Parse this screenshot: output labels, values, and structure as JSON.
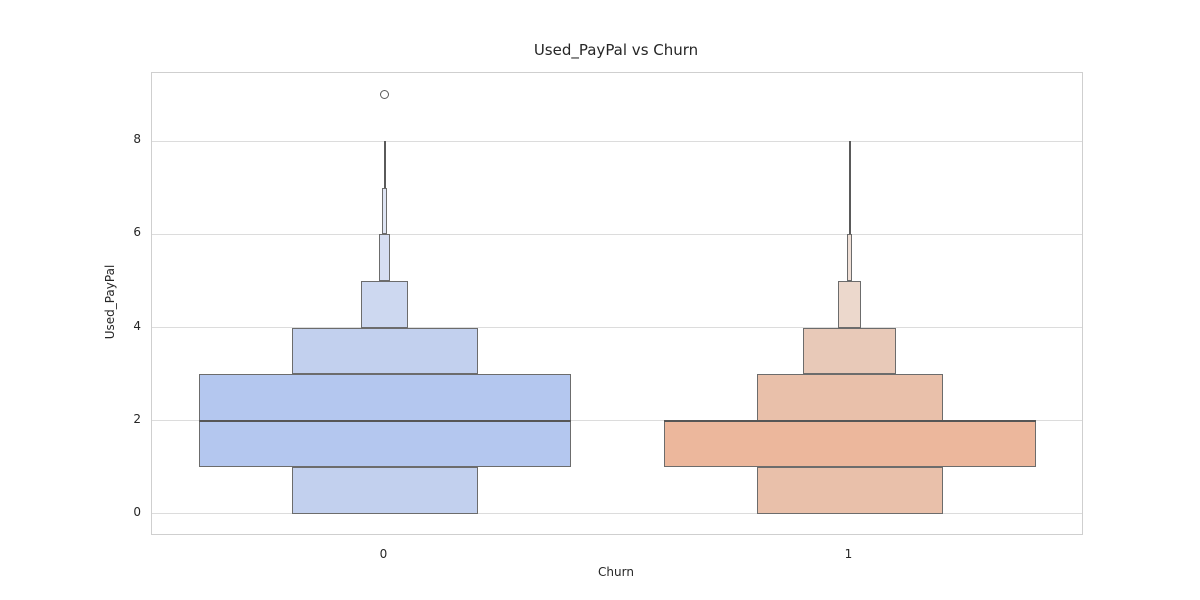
{
  "chart_data": {
    "type": "boxen",
    "title": "Used_PayPal vs Churn",
    "xlabel": "Churn",
    "ylabel": "Used_PayPal",
    "categories": [
      "0",
      "1"
    ],
    "yticks": [
      "0",
      "2",
      "4",
      "6",
      "8"
    ],
    "ytick_values": [
      0,
      2,
      4,
      6,
      8
    ],
    "ylim": [
      -0.43,
      9.46
    ],
    "grid": "horizontal",
    "legend": "none",
    "colors": {
      "group0_base": "#b4c7ef",
      "group1_base": "#ecb79c",
      "box_edge": "#6c6c6c",
      "median_line": "#565656",
      "whisker": "#5a5a5a",
      "gridline": "#dcdcdc",
      "spine": "#cfcfcf",
      "text": "#262626"
    },
    "groups": [
      {
        "category": "0",
        "median": 2,
        "boxes": [
          {
            "from": 1,
            "to": 3,
            "width_frac": 1.0,
            "fill": "#b4c7ef"
          },
          {
            "from": 0,
            "to": 1,
            "width_frac": 0.5,
            "fill": "#c2d0ee"
          },
          {
            "from": 3,
            "to": 4,
            "width_frac": 0.5,
            "fill": "#c2d0ee"
          },
          {
            "from": 4,
            "to": 5,
            "width_frac": 0.129,
            "fill": "#cdd8f0"
          },
          {
            "from": 5,
            "to": 6,
            "width_frac": 0.032,
            "fill": "#d6def2"
          },
          {
            "from": 6,
            "to": 7,
            "width_frac": 0.0134,
            "fill": "#dfe5f4"
          }
        ],
        "whisker": {
          "from": 7,
          "to": 8
        },
        "outliers": [
          9
        ]
      },
      {
        "category": "1",
        "median": 2,
        "boxes": [
          {
            "from": 1,
            "to": 2,
            "width_frac": 1.0,
            "fill": "#ecb79c"
          },
          {
            "from": 0,
            "to": 1,
            "width_frac": 0.5,
            "fill": "#e9c0aa"
          },
          {
            "from": 2,
            "to": 3,
            "width_frac": 0.5,
            "fill": "#e9c0aa"
          },
          {
            "from": 3,
            "to": 4,
            "width_frac": 0.25,
            "fill": "#e8c9b8"
          },
          {
            "from": 4,
            "to": 5,
            "width_frac": 0.0645,
            "fill": "#ecd8cc"
          },
          {
            "from": 5,
            "to": 6,
            "width_frac": 0.0134,
            "fill": "#f0e0d7"
          }
        ],
        "whisker": {
          "from": 6,
          "to": 8
        },
        "outliers": []
      }
    ]
  }
}
